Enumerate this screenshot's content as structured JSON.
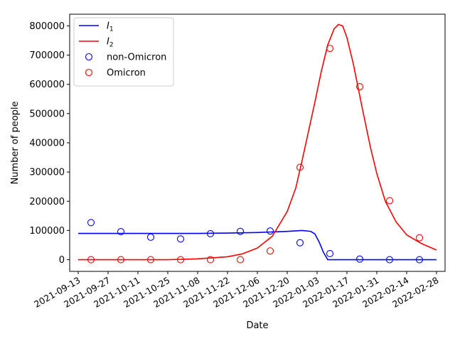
{
  "chart_data": {
    "type": "line",
    "xlabel": "Date",
    "ylabel": "Number of people",
    "x_ticks": [
      "2021-09-13",
      "2021-09-27",
      "2021-10-11",
      "2021-10-25",
      "2021-11-08",
      "2021-11-22",
      "2021-12-06",
      "2021-12-20",
      "2022-01-03",
      "2022-01-17",
      "2022-01-31",
      "2022-02-14",
      "2022-02-28"
    ],
    "y_ticks": [
      0,
      100000,
      200000,
      300000,
      400000,
      500000,
      600000,
      700000,
      800000
    ],
    "xlim": [
      "2021-09-09",
      "2022-03-04"
    ],
    "ylim": [
      -40000,
      840000
    ],
    "grid": false,
    "legend_position": "top-left",
    "series": [
      {
        "name": "I_1",
        "name_base": "I",
        "name_sub": "1",
        "kind": "line",
        "color": "#0000ff",
        "points": [
          [
            "2021-09-13",
            90000
          ],
          [
            "2021-10-11",
            90000
          ],
          [
            "2021-11-08",
            90000
          ],
          [
            "2021-11-22",
            91000
          ],
          [
            "2021-12-06",
            93000
          ],
          [
            "2021-12-20",
            97000
          ],
          [
            "2021-12-27",
            100000
          ],
          [
            "2021-12-31",
            97000
          ],
          [
            "2022-01-02",
            88000
          ],
          [
            "2022-01-04",
            60000
          ],
          [
            "2022-01-06",
            25000
          ],
          [
            "2022-01-08",
            0
          ],
          [
            "2022-02-28",
            0
          ]
        ]
      },
      {
        "name": "I_2",
        "name_base": "I",
        "name_sub": "2",
        "kind": "line",
        "color": "#ff0000",
        "points": [
          [
            "2021-09-13",
            0
          ],
          [
            "2021-10-25",
            0
          ],
          [
            "2021-11-08",
            3000
          ],
          [
            "2021-11-22",
            10000
          ],
          [
            "2021-11-29",
            20000
          ],
          [
            "2021-12-06",
            40000
          ],
          [
            "2021-12-13",
            80000
          ],
          [
            "2021-12-20",
            165000
          ],
          [
            "2021-12-24",
            245000
          ],
          [
            "2021-12-27",
            340000
          ],
          [
            "2021-12-30",
            440000
          ],
          [
            "2022-01-02",
            540000
          ],
          [
            "2022-01-05",
            645000
          ],
          [
            "2022-01-08",
            735000
          ],
          [
            "2022-01-11",
            790000
          ],
          [
            "2022-01-13",
            805000
          ],
          [
            "2022-01-15",
            800000
          ],
          [
            "2022-01-17",
            760000
          ],
          [
            "2022-01-20",
            670000
          ],
          [
            "2022-01-24",
            525000
          ],
          [
            "2022-01-28",
            385000
          ],
          [
            "2022-01-31",
            295000
          ],
          [
            "2022-02-04",
            200000
          ],
          [
            "2022-02-09",
            130000
          ],
          [
            "2022-02-14",
            85000
          ],
          [
            "2022-02-21",
            55000
          ],
          [
            "2022-02-28",
            33000
          ]
        ]
      },
      {
        "name": "non-Omicron",
        "kind": "scatter",
        "color": "#0000ff",
        "points": [
          [
            "2021-09-19",
            127000
          ],
          [
            "2021-10-03",
            96000
          ],
          [
            "2021-10-17",
            77000
          ],
          [
            "2021-10-31",
            71000
          ],
          [
            "2021-11-14",
            89000
          ],
          [
            "2021-11-28",
            97000
          ],
          [
            "2021-12-12",
            98000
          ],
          [
            "2021-12-26",
            58000
          ],
          [
            "2022-01-09",
            21000
          ],
          [
            "2022-01-23",
            2000
          ],
          [
            "2022-02-06",
            0
          ],
          [
            "2022-02-20",
            0
          ]
        ]
      },
      {
        "name": "Omicron",
        "kind": "scatter",
        "color": "#ff0000",
        "points": [
          [
            "2021-09-19",
            0
          ],
          [
            "2021-10-03",
            0
          ],
          [
            "2021-10-17",
            0
          ],
          [
            "2021-10-31",
            0
          ],
          [
            "2021-11-14",
            0
          ],
          [
            "2021-11-28",
            0
          ],
          [
            "2021-12-12",
            30000
          ],
          [
            "2021-12-26",
            316000
          ],
          [
            "2022-01-09",
            723000
          ],
          [
            "2022-01-23",
            592000
          ],
          [
            "2022-02-06",
            202000
          ],
          [
            "2022-02-20",
            75000
          ]
        ]
      }
    ]
  }
}
